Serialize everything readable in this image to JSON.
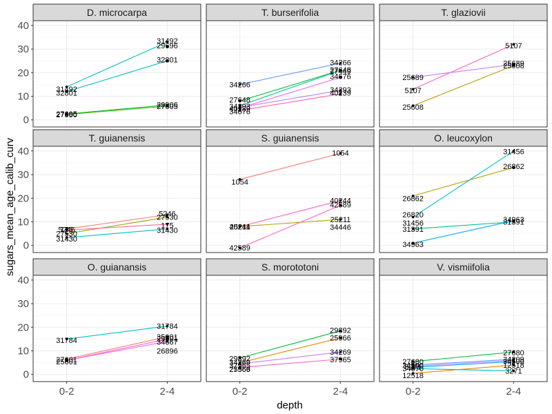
{
  "chart_data": {
    "type": "line",
    "xlabel": "depth",
    "ylabel": "sugars_mean_age_calib_curv",
    "categories": [
      "0-2",
      "2-4"
    ],
    "ylim": [
      -3,
      42
    ],
    "yticks": [
      0,
      10,
      20,
      30,
      40
    ],
    "grid": true,
    "legend": "none",
    "panels": [
      {
        "title": "D. microcarpa",
        "series": [
          {
            "label": "31492",
            "values": [
              14,
              33
            ],
            "color": "#00BFC4"
          },
          {
            "label": "29696",
            "values": [
              null,
              31
            ],
            "color": "#00BFC4"
          },
          {
            "label": "32801",
            "values": [
              12,
              25
            ],
            "color": "#00BFC4"
          },
          {
            "label": "27660",
            "values": [
              2.5,
              6.3
            ],
            "color": "#00BA38"
          },
          {
            "label": "27605",
            "values": [
              2.3,
              5.8
            ],
            "color": "#53B400"
          },
          {
            "label": "29906",
            "values": [
              2.5,
              null
            ],
            "color": "#00BA38"
          }
        ],
        "point_labels": [
          {
            "text": "31492",
            "x": "0-2",
            "y": 13
          },
          {
            "text": "32801",
            "x": "0-2",
            "y": 11.5
          },
          {
            "text": "27605",
            "x": "0-2",
            "y": 2.5
          },
          {
            "text": "27660",
            "x": "0-2",
            "y": 2.2
          },
          {
            "text": "31492",
            "x": "2-4",
            "y": 33.5
          },
          {
            "text": "29696",
            "x": "2-4",
            "y": 31.5
          },
          {
            "text": "32801",
            "x": "2-4",
            "y": 25.5
          },
          {
            "text": "29906",
            "x": "2-4",
            "y": 6.5
          },
          {
            "text": "27605",
            "x": "2-4",
            "y": 5.7
          }
        ]
      },
      {
        "title": "T. burserifolia",
        "series": [
          {
            "label": "34266",
            "values": [
              15,
              24
            ],
            "color": "#619CFF"
          },
          {
            "label": "27648",
            "values": [
              8,
              21
            ],
            "color": "#00BA38"
          },
          {
            "label": "27449",
            "values": [
              6,
              21
            ],
            "color": "#00C19F"
          },
          {
            "label": "34676",
            "values": [
              5,
              18
            ],
            "color": "#F564E3"
          },
          {
            "label": "34293",
            "values": [
              5.3,
              12.5
            ],
            "color": "#B983FF"
          },
          {
            "label": "40239",
            "values": [
              4,
              11
            ],
            "color": "#FF64B0"
          }
        ],
        "point_labels": [
          {
            "text": "34266",
            "x": "0-2",
            "y": 15
          },
          {
            "text": "27648",
            "x": "0-2",
            "y": 8.5
          },
          {
            "text": "34293",
            "x": "0-2",
            "y": 5.8
          },
          {
            "text": "40239",
            "x": "0-2",
            "y": 4.8
          },
          {
            "text": "34676",
            "x": "0-2",
            "y": 3.6
          },
          {
            "text": "34266",
            "x": "2-4",
            "y": 24.3
          },
          {
            "text": "27648",
            "x": "2-4",
            "y": 21.3
          },
          {
            "text": "27449",
            "x": "2-4",
            "y": 20.7
          },
          {
            "text": "34676",
            "x": "2-4",
            "y": 18.5
          },
          {
            "text": "34293",
            "x": "2-4",
            "y": 12.8
          },
          {
            "text": "40239",
            "x": "2-4",
            "y": 11.5
          }
        ]
      },
      {
        "title": "T. glaziovii",
        "series": [
          {
            "label": "5107",
            "values": [
              13,
              32
            ],
            "color": "#FF61C3"
          },
          {
            "label": "25689",
            "values": [
              18,
              23.5
            ],
            "color": "#C77CFF"
          },
          {
            "label": "25608",
            "values": [
              6,
              23
            ],
            "color": "#B79F00"
          }
        ],
        "point_labels": [
          {
            "text": "25689",
            "x": "0-2",
            "y": 18
          },
          {
            "text": "5107",
            "x": "0-2",
            "y": 12.5
          },
          {
            "text": "25608",
            "x": "0-2",
            "y": 5.5
          },
          {
            "text": "5107",
            "x": "2-4",
            "y": 31.5
          },
          {
            "text": "25689",
            "x": "2-4",
            "y": 24
          },
          {
            "text": "25608",
            "x": "2-4",
            "y": 23
          }
        ]
      },
      {
        "title": "T. guianensis",
        "series": [
          {
            "label": "5246",
            "values": [
              7,
              13
            ],
            "color": "#F8766D"
          },
          {
            "label": "27530",
            "values": [
              5,
              12
            ],
            "color": "#7CAE00"
          },
          {
            "label": "175",
            "values": [
              6.5,
              9
            ],
            "color": "#FF6C91"
          },
          {
            "label": "31430",
            "values": [
              3.3,
              7
            ],
            "color": "#00BFC4"
          }
        ],
        "point_labels": [
          {
            "text": "5246",
            "x": "0-2",
            "y": 6.8
          },
          {
            "text": "175",
            "x": "0-2",
            "y": 6.8
          },
          {
            "text": "27530",
            "x": "0-2",
            "y": 5
          },
          {
            "text": "31430",
            "x": "0-2",
            "y": 2.9
          },
          {
            "text": "5246",
            "x": "2-4",
            "y": 13.5
          },
          {
            "text": "27530",
            "x": "2-4",
            "y": 12
          },
          {
            "text": "175",
            "x": "2-4",
            "y": 8.5
          },
          {
            "text": "31430",
            "x": "2-4",
            "y": 6.5
          }
        ]
      },
      {
        "title": "S. guianensis",
        "series": [
          {
            "label": "1054",
            "values": [
              28,
              39
            ],
            "color": "#F8766D"
          },
          {
            "label": "40244",
            "values": [
              8,
              19
            ],
            "color": "#FF61C3"
          },
          {
            "label": "25211",
            "values": [
              8,
              11
            ],
            "color": "#B79F00"
          },
          {
            "label": "42589",
            "values": [
              -1,
              17
            ],
            "color": "#FF61C3"
          }
        ],
        "point_labels": [
          {
            "text": "1054",
            "x": "0-2",
            "y": 27
          },
          {
            "text": "25211",
            "x": "0-2",
            "y": 8
          },
          {
            "text": "40244",
            "x": "0-2",
            "y": 8
          },
          {
            "text": "42589",
            "x": "0-2",
            "y": -1
          },
          {
            "text": "1054",
            "x": "2-4",
            "y": 39.2
          },
          {
            "text": "40244",
            "x": "2-4",
            "y": 19
          },
          {
            "text": "42589",
            "x": "2-4",
            "y": 17.3
          },
          {
            "text": "25211",
            "x": "2-4",
            "y": 11
          },
          {
            "text": "34446",
            "x": "2-4",
            "y": 7.8
          }
        ]
      },
      {
        "title": "O. leucoxylon",
        "series": [
          {
            "label": "26862",
            "values": [
              21,
              33
            ],
            "color": "#B79F00"
          },
          {
            "label": "31456",
            "values": [
              12,
              40
            ],
            "color": "#00BFC4"
          },
          {
            "label": "31391",
            "values": [
              7,
              10
            ],
            "color": "#00C08B"
          },
          {
            "label": "34963",
            "values": [
              1,
              10.5
            ],
            "color": "#00A9FF"
          }
        ],
        "point_labels": [
          {
            "text": "26862",
            "x": "0-2",
            "y": 20
          },
          {
            "text": "26820",
            "x": "0-2",
            "y": 13
          },
          {
            "text": "31456",
            "x": "0-2",
            "y": 9.5
          },
          {
            "text": "31391",
            "x": "0-2",
            "y": 7
          },
          {
            "text": "34963",
            "x": "0-2",
            "y": 0.5
          },
          {
            "text": "31456",
            "x": "2-4",
            "y": 39.8
          },
          {
            "text": "26862",
            "x": "2-4",
            "y": 33.5
          },
          {
            "text": "34963",
            "x": "2-4",
            "y": 11
          },
          {
            "text": "31391",
            "x": "2-4",
            "y": 10
          }
        ]
      },
      {
        "title": "O. guianansis",
        "series": [
          {
            "label": "31784",
            "values": [
              15,
              20.5
            ],
            "color": "#00BFC4"
          },
          {
            "label": "35001",
            "values": [
              6.5,
              16
            ],
            "color": "#F8766D"
          },
          {
            "label": "25601",
            "values": [
              6,
              15
            ],
            "color": "#FF61C3"
          },
          {
            "label": "26896",
            "values": [
              6,
              14
            ],
            "color": "#E76BF3"
          }
        ],
        "point_labels": [
          {
            "text": "31784",
            "x": "0-2",
            "y": 14.5
          },
          {
            "text": "27601",
            "x": "0-2",
            "y": 6.4
          },
          {
            "text": "25601",
            "x": "0-2",
            "y": 5.5
          },
          {
            "text": "31784",
            "x": "2-4",
            "y": 20.5
          },
          {
            "text": "35001",
            "x": "2-4",
            "y": 16
          },
          {
            "text": "25601",
            "x": "2-4",
            "y": 15.2
          },
          {
            "text": "34667",
            "x": "2-4",
            "y": 13.8
          },
          {
            "text": "26896",
            "x": "2-4",
            "y": 10
          }
        ]
      },
      {
        "title": "S. morototoni",
        "series": [
          {
            "label": "29892",
            "values": [
              7,
              18.5
            ],
            "color": "#00BA38"
          },
          {
            "label": "25966",
            "values": [
              5,
              15.5
            ],
            "color": "#E58700"
          },
          {
            "label": "34269",
            "values": [
              4.5,
              9.5
            ],
            "color": "#C77CFF"
          },
          {
            "label": "37965",
            "values": [
              3,
              6.5
            ],
            "color": "#FF61C3"
          }
        ],
        "point_labels": [
          {
            "text": "29892",
            "x": "0-2",
            "y": 6.8
          },
          {
            "text": "34269",
            "x": "0-2",
            "y": 5.2
          },
          {
            "text": "37965",
            "x": "0-2",
            "y": 3.8
          },
          {
            "text": "25966",
            "x": "0-2",
            "y": 2.3
          },
          {
            "text": "27569",
            "x": "0-2",
            "y": 2.2
          },
          {
            "text": "29892",
            "x": "2-4",
            "y": 18.8
          },
          {
            "text": "25966",
            "x": "2-4",
            "y": 15.5
          },
          {
            "text": "34269",
            "x": "2-4",
            "y": 9.5
          },
          {
            "text": "37965",
            "x": "2-4",
            "y": 6.3
          }
        ]
      },
      {
        "title": "V. vismiifolia",
        "series": [
          {
            "label": "27680",
            "values": [
              5.5,
              9.5
            ],
            "color": "#00BA38"
          },
          {
            "label": "34209",
            "values": [
              4,
              6.5
            ],
            "color": "#619CFF"
          },
          {
            "label": "34500",
            "values": [
              3.5,
              6
            ],
            "color": "#B983FF"
          },
          {
            "label": "34670",
            "values": [
              3,
              5.5
            ],
            "color": "#00A9FF"
          },
          {
            "label": "12518",
            "values": [
              0.5,
              4
            ],
            "color": "#E58700"
          },
          {
            "label": "3271",
            "values": [
              2.5,
              1.5
            ],
            "color": "#00BFC4"
          }
        ],
        "point_labels": [
          {
            "text": "27680",
            "x": "0-2",
            "y": 5.5
          },
          {
            "text": "34500",
            "x": "0-2",
            "y": 3.9
          },
          {
            "text": "3271",
            "x": "0-2",
            "y": 3.3
          },
          {
            "text": "34670",
            "x": "0-2",
            "y": 2.6
          },
          {
            "text": "12518",
            "x": "0-2",
            "y": -0.3
          },
          {
            "text": "27680",
            "x": "2-4",
            "y": 9.3
          },
          {
            "text": "34209",
            "x": "2-4",
            "y": 6.5
          },
          {
            "text": "34500",
            "x": "2-4",
            "y": 5.6
          },
          {
            "text": "12518",
            "x": "2-4",
            "y": 4
          },
          {
            "text": "3271",
            "x": "2-4",
            "y": 1.5
          }
        ]
      }
    ]
  }
}
